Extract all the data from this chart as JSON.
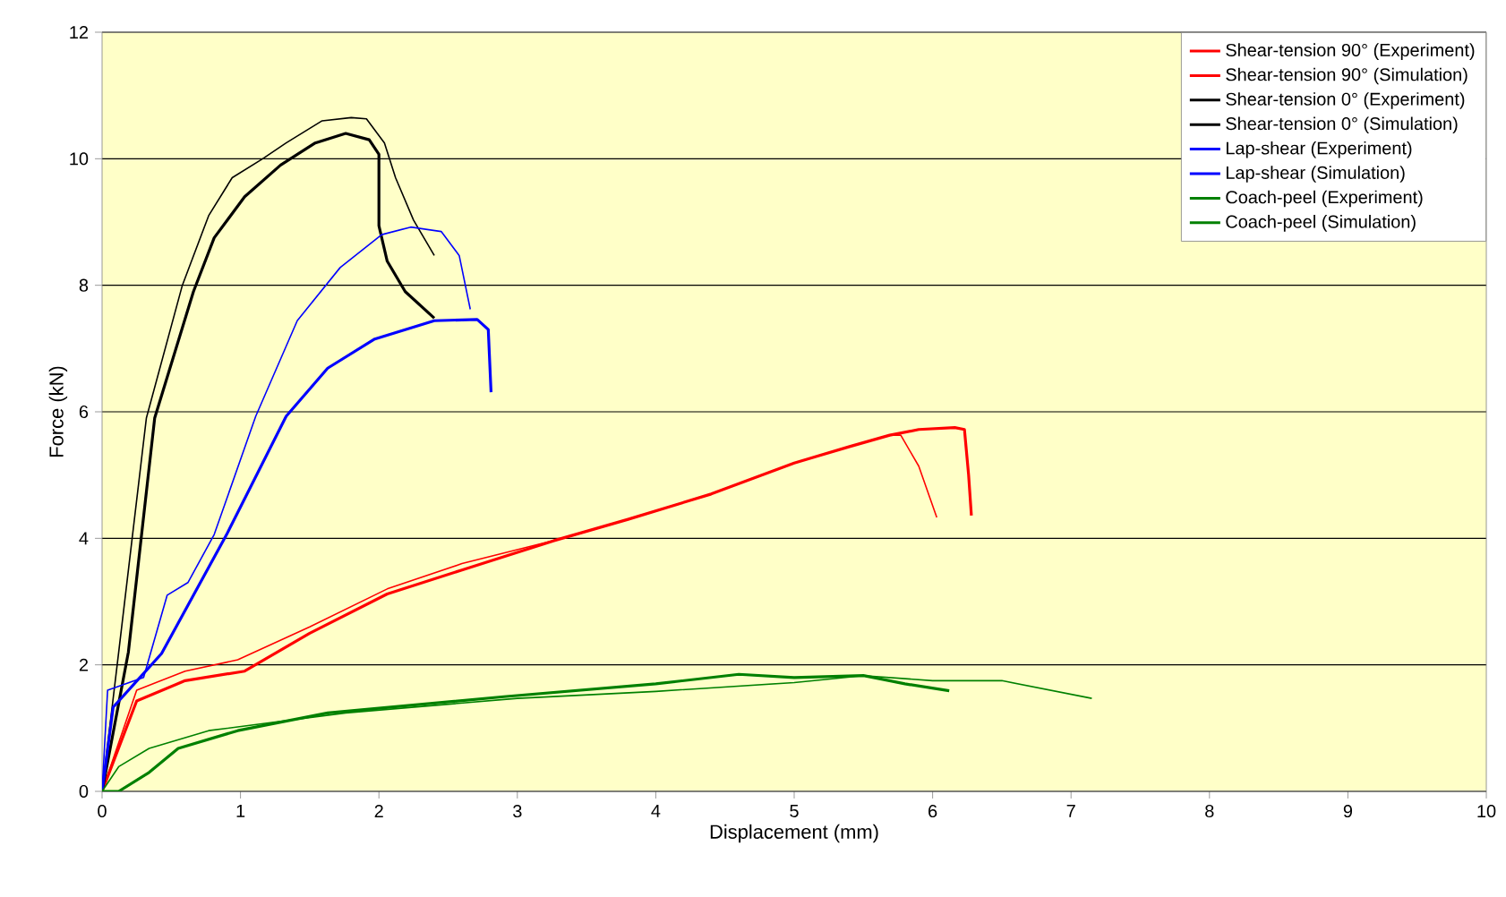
{
  "chart_data": {
    "type": "line",
    "xlabel": "Displacement (mm)",
    "ylabel": "Force (kN)",
    "xlim": [
      0,
      10
    ],
    "ylim": [
      0,
      12
    ],
    "xticks": [
      0,
      1,
      2,
      3,
      4,
      5,
      6,
      7,
      8,
      9,
      10
    ],
    "yticks": [
      0,
      2,
      4,
      6,
      8,
      10,
      12
    ],
    "grid": "y",
    "legend": "top right",
    "series": [
      {
        "name": "Shear-tension 90° (Experiment)",
        "color": "#ff0000",
        "x": [
          0,
          0.25,
          0.6,
          1.03,
          1.5,
          2.06,
          2.6,
          3.26,
          3.8,
          4.4,
          5.0,
          5.4,
          5.69,
          5.9,
          6.16,
          6.23,
          6.26,
          6.28
        ],
        "values": [
          0,
          1.43,
          1.75,
          1.9,
          2.5,
          3.12,
          3.5,
          3.96,
          4.3,
          4.7,
          5.19,
          5.45,
          5.63,
          5.72,
          5.75,
          5.72,
          5.0,
          4.36
        ]
      },
      {
        "name": "Shear-tension 90° (Simulation)",
        "color": "#ff0000",
        "x": [
          0,
          0.25,
          0.6,
          0.98,
          1.5,
          2.06,
          2.6,
          3.36,
          3.8,
          4.4,
          5.0,
          5.4,
          5.69,
          5.77,
          5.9,
          6.03
        ],
        "values": [
          0,
          1.6,
          1.9,
          2.08,
          2.6,
          3.2,
          3.6,
          4.02,
          4.3,
          4.7,
          5.19,
          5.45,
          5.63,
          5.63,
          5.14,
          4.33
        ]
      },
      {
        "name": "Shear-tension 0° (Experiment)",
        "color": "#000000",
        "x": [
          0,
          0.19,
          0.38,
          0.66,
          0.81,
          1.03,
          1.29,
          1.54,
          1.76,
          1.93,
          2.0,
          2.0,
          2.06,
          2.19,
          2.4
        ],
        "values": [
          0,
          2.2,
          5.9,
          7.9,
          8.75,
          9.4,
          9.9,
          10.25,
          10.4,
          10.3,
          10.07,
          8.94,
          8.38,
          7.9,
          7.48
        ]
      },
      {
        "name": "Shear-tension 0° (Simulation)",
        "color": "#000000",
        "x": [
          0,
          0.12,
          0.32,
          0.58,
          0.77,
          0.94,
          1.16,
          1.33,
          1.59,
          1.8,
          1.91,
          2.04,
          2.12,
          2.25,
          2.4
        ],
        "values": [
          0,
          2.2,
          5.9,
          8.0,
          9.1,
          9.7,
          10.0,
          10.25,
          10.6,
          10.65,
          10.63,
          10.25,
          9.7,
          9.03,
          8.47
        ]
      },
      {
        "name": "Lap-shear (Experiment)",
        "color": "#0000ff",
        "x": [
          0,
          0.08,
          0.43,
          0.9,
          1.33,
          1.63,
          1.97,
          2.4,
          2.71,
          2.79,
          2.81
        ],
        "values": [
          0,
          1.33,
          2.18,
          4.06,
          5.93,
          6.69,
          7.15,
          7.44,
          7.46,
          7.3,
          6.31
        ]
      },
      {
        "name": "Lap-shear (Simulation)",
        "color": "#0000ff",
        "x": [
          0,
          0.04,
          0.3,
          0.47,
          0.62,
          0.81,
          1.11,
          1.41,
          1.72,
          2.02,
          2.23,
          2.45,
          2.58,
          2.66
        ],
        "values": [
          0,
          1.6,
          1.8,
          3.1,
          3.3,
          4.06,
          5.93,
          7.44,
          8.28,
          8.8,
          8.92,
          8.85,
          8.47,
          7.62
        ]
      },
      {
        "name": "Coach-peel (Experiment)",
        "color": "#008000",
        "x": [
          0,
          0.12,
          0.34,
          0.55,
          0.98,
          1.63,
          2.92,
          4.0,
          4.6,
          5.0,
          5.5,
          5.8,
          6.12
        ],
        "values": [
          0,
          0,
          0.3,
          0.68,
          0.96,
          1.24,
          1.5,
          1.7,
          1.85,
          1.8,
          1.83,
          1.7,
          1.59
        ]
      },
      {
        "name": "Coach-peel (Simulation)",
        "color": "#008000",
        "x": [
          0,
          0.12,
          0.34,
          0.77,
          1.76,
          3.0,
          4.0,
          5.0,
          5.5,
          6.0,
          6.5,
          7.15
        ],
        "values": [
          0,
          0.39,
          0.68,
          0.96,
          1.24,
          1.47,
          1.58,
          1.72,
          1.83,
          1.75,
          1.75,
          1.47
        ]
      }
    ]
  }
}
